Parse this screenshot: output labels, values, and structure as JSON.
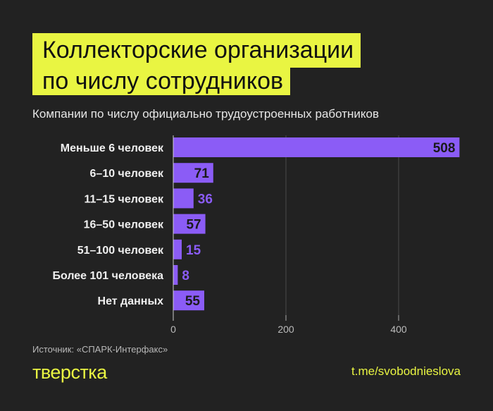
{
  "title_line1": "Коллекторские организации",
  "title_line2": "по числу сотрудников",
  "subtitle": "Компании по числу официально трудоустроенных работников",
  "source": "Источник: «СПАРК-Интерфакс»",
  "logo": "тверстка",
  "link": "t.me/svobodnieslova",
  "colors": {
    "bar": "#8b5cf6",
    "accent": "#e9f542",
    "bg": "#222222"
  },
  "chart_data": {
    "type": "bar",
    "orientation": "horizontal",
    "title": "Коллекторские организации по числу сотрудников",
    "categories": [
      "Меньше 6 человек",
      "6–10 человек",
      "11–15 человек",
      "16–50 человек",
      "51–100 человек",
      "Более 101 человека",
      "Нет данных"
    ],
    "values": [
      508,
      71,
      36,
      57,
      15,
      8,
      55
    ],
    "xticks": [
      0,
      200,
      400
    ],
    "xlim": [
      0,
      508
    ],
    "grid": true
  }
}
